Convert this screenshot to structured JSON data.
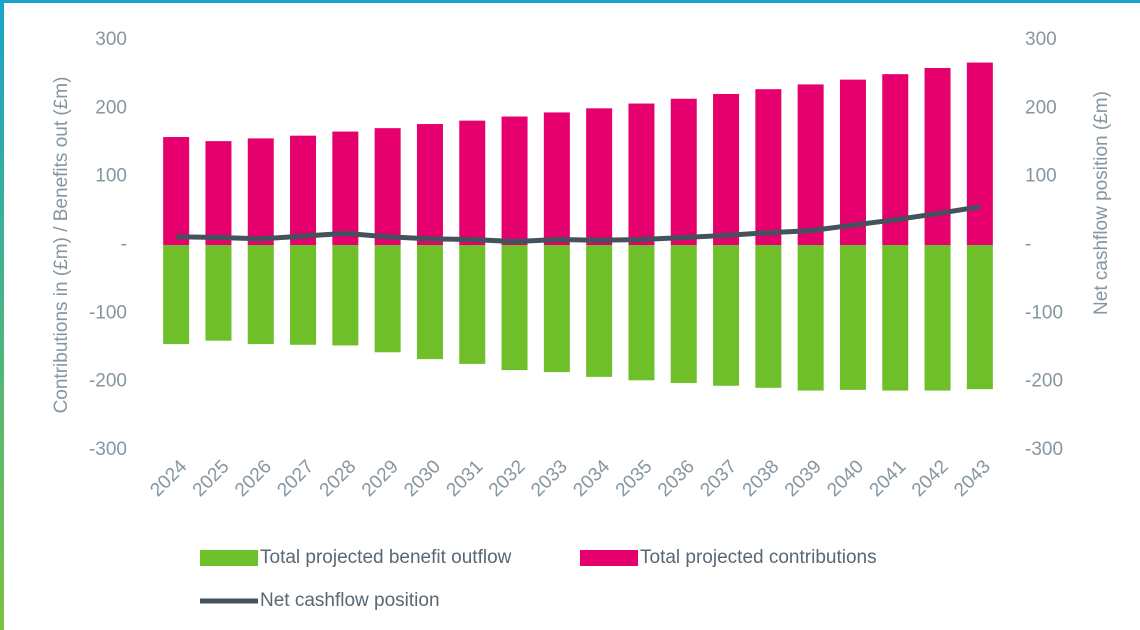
{
  "chart_data": {
    "type": "bar_line",
    "categories": [
      "2024",
      "2025",
      "2026",
      "2027",
      "2028",
      "2029",
      "2030",
      "2031",
      "2032",
      "2033",
      "2034",
      "2035",
      "2036",
      "2037",
      "2038",
      "2039",
      "2040",
      "2041",
      "2042",
      "2043"
    ],
    "series": [
      {
        "name": "Total projected benefit outflow",
        "color": "#6fbf2a",
        "type": "bar",
        "values": [
          -145,
          -140,
          -145,
          -146,
          -147,
          -157,
          -167,
          -174,
          -183,
          -186,
          -193,
          -198,
          -202,
          -206,
          -209,
          -213,
          -212,
          -213,
          -213,
          -211
        ]
      },
      {
        "name": "Total projected contributions",
        "color": "#e5006d",
        "type": "bar",
        "values": [
          158,
          152,
          156,
          160,
          166,
          171,
          177,
          182,
          188,
          194,
          200,
          207,
          214,
          221,
          228,
          235,
          242,
          250,
          259,
          267
        ]
      },
      {
        "name": "Net cashflow position",
        "color": "#44525e",
        "type": "line",
        "axis": "y2",
        "values": [
          12,
          11,
          9,
          13,
          17,
          12,
          9,
          8,
          5,
          8,
          7,
          8,
          11,
          14,
          18,
          21,
          29,
          37,
          46,
          56
        ]
      }
    ],
    "ylabel": "Contributions in (£m) / Benefits out (£m)",
    "y2label": "Net cashflow position (£m)",
    "ylim": [
      -300,
      300
    ],
    "yticks": [
      -300,
      -200,
      -100,
      {
        "value": 0,
        "label": "-"
      },
      100,
      200,
      300
    ],
    "y2lim": [
      -300,
      300
    ],
    "y2ticks": [
      -300,
      -200,
      -100,
      {
        "value": 0,
        "label": "-"
      },
      100,
      200,
      300
    ],
    "legend": "bottom"
  }
}
